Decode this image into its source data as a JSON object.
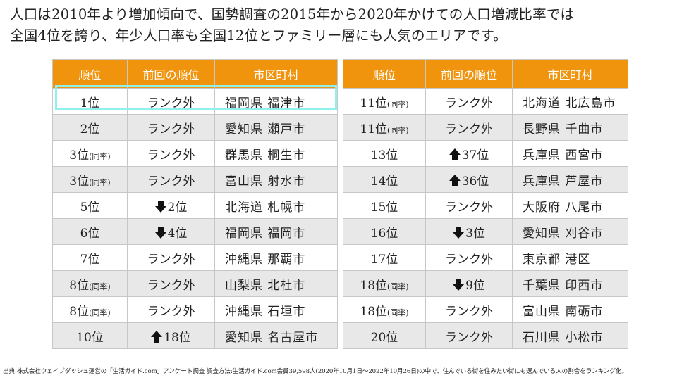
{
  "headline": {
    "line1": "人口は2010年より増加傾向で、国勢調査の2015年から2020年かけての人口増減比率では",
    "line2": "全国4位を誇り、年少人口率も全国12位とファミリー層にも人気のエリアです。"
  },
  "table_headers": {
    "rank": "順位",
    "prev": "前回の順位",
    "city": "市区町村"
  },
  "left_rows": [
    {
      "rank": "1位",
      "note": "",
      "arrow": "",
      "prev": "ランク外",
      "city": "福岡県 福津市"
    },
    {
      "rank": "2位",
      "note": "",
      "arrow": "",
      "prev": "ランク外",
      "city": "愛知県 瀬戸市"
    },
    {
      "rank": "3位",
      "note": "(同率)",
      "arrow": "",
      "prev": "ランク外",
      "city": "群馬県 桐生市"
    },
    {
      "rank": "3位",
      "note": "(同率)",
      "arrow": "",
      "prev": "ランク外",
      "city": "富山県 射水市"
    },
    {
      "rank": "5位",
      "note": "",
      "arrow": "down",
      "prev": "2位",
      "city": "北海道 札幌市"
    },
    {
      "rank": "6位",
      "note": "",
      "arrow": "down",
      "prev": "4位",
      "city": "福岡県 福岡市"
    },
    {
      "rank": "7位",
      "note": "",
      "arrow": "",
      "prev": "ランク外",
      "city": "沖縄県 那覇市"
    },
    {
      "rank": "8位",
      "note": "(同率)",
      "arrow": "",
      "prev": "ランク外",
      "city": "山梨県 北杜市"
    },
    {
      "rank": "8位",
      "note": "(同率)",
      "arrow": "",
      "prev": "ランク外",
      "city": "沖縄県 石垣市"
    },
    {
      "rank": "10位",
      "note": "",
      "arrow": "up",
      "prev": "18位",
      "city": "愛知県 名古屋市"
    }
  ],
  "right_rows": [
    {
      "rank": "11位",
      "note": "(同率)",
      "arrow": "",
      "prev": "ランク外",
      "city": "北海道 北広島市"
    },
    {
      "rank": "11位",
      "note": "(同率)",
      "arrow": "",
      "prev": "ランク外",
      "city": "長野県 千曲市"
    },
    {
      "rank": "13位",
      "note": "",
      "arrow": "up",
      "prev": "37位",
      "city": "兵庫県 西宮市"
    },
    {
      "rank": "14位",
      "note": "",
      "arrow": "up",
      "prev": "36位",
      "city": "兵庫県 芦屋市"
    },
    {
      "rank": "15位",
      "note": "",
      "arrow": "",
      "prev": "ランク外",
      "city": "大阪府 八尾市"
    },
    {
      "rank": "16位",
      "note": "",
      "arrow": "down",
      "prev": "3位",
      "city": "愛知県 刈谷市"
    },
    {
      "rank": "17位",
      "note": "",
      "arrow": "",
      "prev": "ランク外",
      "city": "東京都 港区"
    },
    {
      "rank": "18位",
      "note": "(同率)",
      "arrow": "down",
      "prev": "9位",
      "city": "千葉県 印西市"
    },
    {
      "rank": "18位",
      "note": "(同率)",
      "arrow": "",
      "prev": "ランク外",
      "city": "富山県 南砺市"
    },
    {
      "rank": "20位",
      "note": "",
      "arrow": "",
      "prev": "ランク外",
      "city": "石川県 小松市"
    }
  ],
  "highlight_color": "#8ff0ee",
  "header_color": "#f0940e",
  "footnote": "出典:株式会社ウェイブダッシュ運営の「生活ガイド.com」アンケート調査 調査方法:生活ガイド.com会員39,598人(2020年10月1日～2022年10月26日)の中で、住んでいる街を住みたい街にも選んでいる人の割合をランキング化。"
}
